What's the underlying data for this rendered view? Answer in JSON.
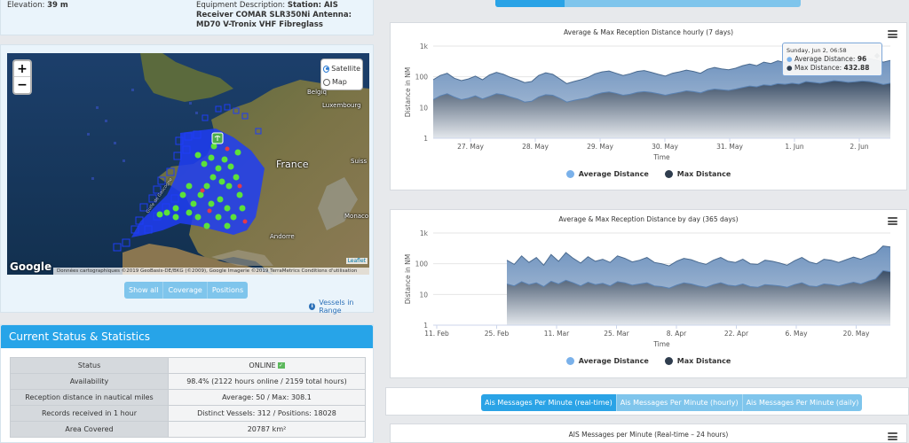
{
  "station": {
    "elevation_label": "Elevation:",
    "elevation_value": "39 m",
    "equipment_label": "Equipment Description:",
    "equipment_value": "Station: AIS Receiver COMAR SLR350Ni Antenna: MD70 V-Tronix VHF Fibreglass"
  },
  "map": {
    "zoom_in": "+",
    "zoom_out": "−",
    "layers": [
      {
        "label": "Satellite",
        "selected": true
      },
      {
        "label": "Map",
        "selected": false
      }
    ],
    "labels": {
      "france": "France",
      "belgique": "Belgiq",
      "luxembourg": "Luxembourg",
      "suisse": "Suiss",
      "monaco": "Monaco",
      "andorre": "Andorre",
      "golfe": "Golfe de Gascogne"
    },
    "google": "Google",
    "attribution": "Données cartographiques ©2019 GeoBasis-DE/BKG (©2009), Google Imagerie ©2019 TerraMetrics    Conditions d'utilisation",
    "leaflet": "Leaflet",
    "filters": [
      "Show all",
      "Coverage",
      "Positions"
    ],
    "vessels_link": "Vessels in Range"
  },
  "status": {
    "title": "Current Status & Statistics",
    "rows": [
      {
        "label": "Status",
        "value": "ONLINE"
      },
      {
        "label": "Availability",
        "value": "98.4% (2122 hours online / 2159 total hours)"
      },
      {
        "label": "Reception distance in nautical miles",
        "value": "Average: 50 / Max: 308.1"
      },
      {
        "label": "Records received in 1 hour",
        "value": "Distinct Vessels: 312 / Positions: 18028"
      },
      {
        "label": "Area Covered",
        "value": "20787 km²"
      }
    ]
  },
  "chart_data": [
    {
      "type": "area",
      "title": "Average & Max Reception Distance hourly (7 days)",
      "xlabel": "Time",
      "ylabel": "Distance in NM",
      "y_scale": "log",
      "ylim": [
        1,
        1000
      ],
      "y_ticks": [
        "1",
        "10",
        "100",
        "1k"
      ],
      "x_ticks": [
        "27. May",
        "28. May",
        "29. May",
        "30. May",
        "31. May",
        "1. Jun",
        "2. Jun"
      ],
      "series": [
        {
          "name": "Max Distance",
          "color": "#2f3d4e",
          "values": [
            80,
            110,
            130,
            90,
            75,
            85,
            105,
            80,
            115,
            140,
            120,
            95,
            80,
            65,
            70,
            110,
            135,
            120,
            85,
            60,
            70,
            80,
            95,
            125,
            145,
            155,
            130,
            110,
            125,
            150,
            160,
            140,
            120,
            105,
            130,
            145,
            165,
            150,
            130,
            175,
            200,
            180,
            170,
            190,
            230,
            260,
            230,
            300,
            270,
            330,
            290,
            350,
            300,
            400,
            380,
            340,
            380,
            430,
            400,
            360,
            380,
            410,
            390,
            350,
            300,
            340
          ]
        },
        {
          "name": "Average Distance",
          "color": "#7ab1ea",
          "values": [
            18,
            24,
            28,
            22,
            18,
            20,
            24,
            19,
            23,
            28,
            26,
            22,
            19,
            15,
            16,
            22,
            26,
            25,
            20,
            15,
            17,
            19,
            21,
            26,
            30,
            32,
            29,
            25,
            27,
            31,
            33,
            31,
            28,
            25,
            28,
            31,
            35,
            33,
            30,
            36,
            40,
            38,
            36,
            40,
            45,
            50,
            47,
            55,
            52,
            60,
            57,
            62,
            58,
            70,
            66,
            62,
            68,
            75,
            71,
            66,
            69,
            73,
            70,
            64,
            56,
            62
          ]
        }
      ],
      "tooltip": {
        "time": "Sunday, Jun 2, 06:58",
        "avg_label": "Average Distance:",
        "avg": "96",
        "max_label": "Max Distance:",
        "max": "432.88"
      },
      "legend": [
        "Average Distance",
        "Max Distance"
      ]
    },
    {
      "type": "area",
      "title": "Average & Max Reception Distance by day (365 days)",
      "xlabel": "Time",
      "ylabel": "Distance in NM",
      "y_scale": "log",
      "ylim": [
        1,
        1000
      ],
      "y_ticks": [
        "1",
        "10",
        "100",
        "1k"
      ],
      "x_ticks": [
        "11. Feb",
        "25. Feb",
        "11. Mar",
        "25. Mar",
        "8. Apr",
        "22. Apr",
        "6. May",
        "20. May"
      ],
      "series": [
        {
          "name": "Max Distance",
          "color": "#2f3d4e",
          "values": [
            130,
            95,
            180,
            110,
            160,
            90,
            200,
            120,
            230,
            150,
            105,
            170,
            120,
            140,
            110,
            180,
            150,
            115,
            130,
            160,
            110,
            100,
            85,
            120,
            150,
            135,
            110,
            95,
            130,
            160,
            120,
            110,
            140,
            100,
            95,
            130,
            120,
            105,
            90,
            125,
            160,
            115,
            100,
            140,
            130,
            110,
            135,
            165,
            140,
            180,
            220,
            380,
            350
          ]
        },
        {
          "name": "Average Distance",
          "color": "#7ab1ea",
          "values": [
            22,
            19,
            26,
            21,
            24,
            18,
            27,
            22,
            29,
            24,
            19,
            25,
            21,
            23,
            19,
            26,
            24,
            20,
            22,
            24,
            19,
            18,
            16,
            20,
            24,
            22,
            19,
            17,
            21,
            24,
            20,
            19,
            22,
            18,
            17,
            21,
            20,
            19,
            17,
            21,
            24,
            19,
            18,
            22,
            21,
            19,
            22,
            25,
            22,
            27,
            32,
            60,
            55
          ]
        }
      ],
      "legend": [
        "Average Distance",
        "Max Distance"
      ]
    },
    {
      "type": "line",
      "title": "AIS Messages per Minute (Real-time – 24 hours)"
    }
  ],
  "msg_tabs": [
    "Ais Messages Per Minute (real-time)",
    "Ais Messages Per Minute (hourly)",
    "Ais Messages Per Minute (daily)"
  ]
}
